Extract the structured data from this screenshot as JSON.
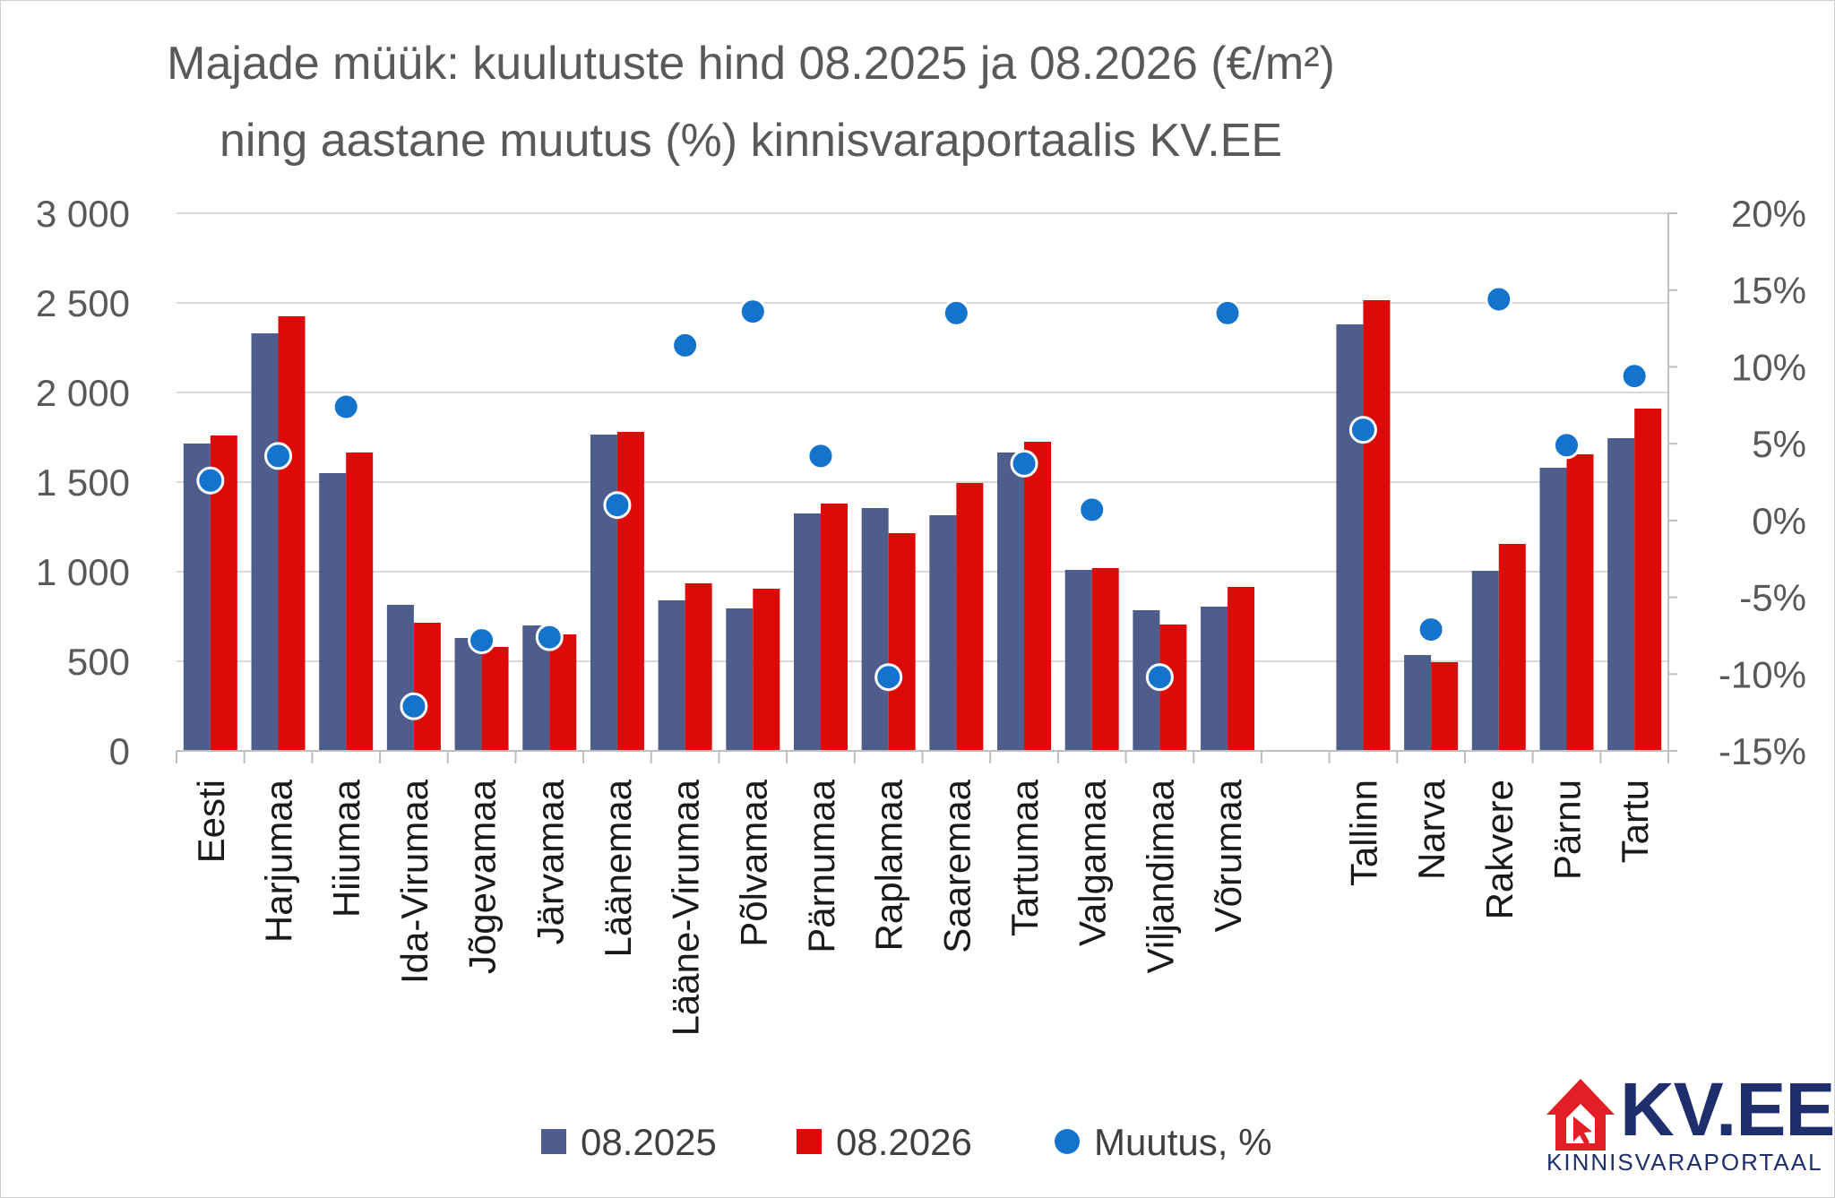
{
  "chart_data": {
    "type": "bar",
    "title_lines": [
      "Majade müük: kuulutuste hind 08.2025 ja 08.2026 (€/m²)",
      "ning aastane muutus (%) kinnisvaraportaalis KV.EE"
    ],
    "categories": [
      "Eesti",
      "Harjumaa",
      "Hiiumaa",
      "Ida-Virumaa",
      "Jõgevamaa",
      "Järvamaa",
      "Läänemaa",
      "Lääne-Virumaa",
      "Põlvamaa",
      "Pärnumaa",
      "Raplamaa",
      "Saaremaa",
      "Tartumaa",
      "Valgamaa",
      "Viljandimaa",
      "Võrumaa",
      "",
      "Tallinn",
      "Narva",
      "Rakvere",
      "Pärnu",
      "Tartu"
    ],
    "series": [
      {
        "name": "08.2025",
        "color": "#4e5d8c",
        "axis": "left",
        "values": [
          1715,
          2330,
          1550,
          815,
          630,
          700,
          1765,
          840,
          795,
          1325,
          1355,
          1315,
          1665,
          1010,
          785,
          805,
          null,
          2380,
          535,
          1005,
          1580,
          1745
        ]
      },
      {
        "name": "08.2026",
        "color": "#dd0a0a",
        "axis": "left",
        "values": [
          1760,
          2425,
          1665,
          715,
          580,
          650,
          1780,
          935,
          905,
          1380,
          1215,
          1495,
          1725,
          1020,
          705,
          915,
          null,
          2515,
          495,
          1155,
          1655,
          1910
        ]
      },
      {
        "name": "Muutus, %",
        "color": "#1473cc",
        "axis": "right",
        "marker": "circle",
        "values": [
          2.6,
          4.2,
          7.4,
          -12.1,
          -7.8,
          -7.6,
          1.0,
          11.4,
          13.6,
          4.2,
          -10.2,
          13.5,
          3.7,
          0.7,
          -10.2,
          13.5,
          null,
          5.9,
          -7.1,
          14.4,
          4.9,
          9.4
        ]
      }
    ],
    "y_left": {
      "min": 0,
      "max": 3000,
      "ticks": [
        0,
        500,
        1000,
        1500,
        2000,
        2500,
        3000
      ],
      "tick_labels": [
        "0",
        "500",
        "1 000",
        "1 500",
        "2 000",
        "2 500",
        "3 000"
      ]
    },
    "y_right": {
      "min": -15,
      "max": 20,
      "ticks": [
        -15,
        -10,
        -5,
        0,
        5,
        10,
        15,
        20
      ],
      "tick_labels": [
        "-15%",
        "-10%",
        "-5%",
        "0%",
        "5%",
        "10%",
        "15%",
        "20%"
      ]
    },
    "grid": true,
    "legend_position": "bottom"
  },
  "logo": {
    "word": "KV.EE",
    "tagline": "KINNISVARAPORTAAL",
    "colors": {
      "roof": "#e31e24",
      "text": "#1f2f6e"
    }
  }
}
